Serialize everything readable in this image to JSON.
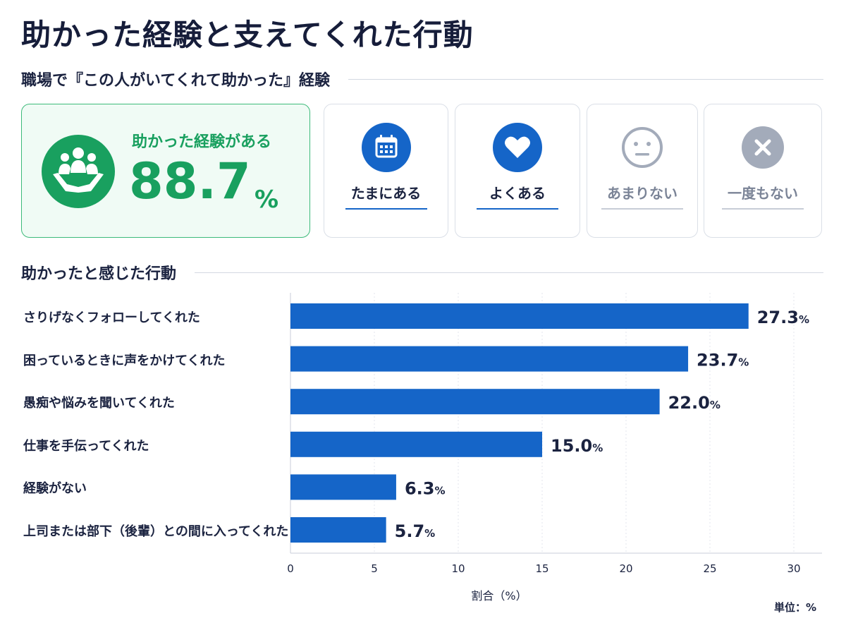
{
  "title": "助かった経験と支えてくれた行動",
  "section1": {
    "title": "職場で『この人がいてくれて助かった』経験"
  },
  "main_card": {
    "label": "助かった経験がある",
    "value": "88.7",
    "unit": "%",
    "icon": "helping-hands-people-icon"
  },
  "frequency_cards": [
    {
      "label": "たまにある",
      "icon": "calendar-icon",
      "state": "active"
    },
    {
      "label": "よくある",
      "icon": "heart-icon",
      "state": "active"
    },
    {
      "label": "あまりない",
      "icon": "neutral-face-icon",
      "state": "muted"
    },
    {
      "label": "一度もない",
      "icon": "cross-circle-icon",
      "state": "muted"
    }
  ],
  "section2": {
    "title": "助かったと感じた行動"
  },
  "colors": {
    "green": "#19a05f",
    "blue": "#1565c8",
    "gray": "#a3abba",
    "text": "#1b2340"
  },
  "chart_data": {
    "type": "bar",
    "orientation": "horizontal",
    "categories": [
      "さりげなくフォローしてくれた",
      "困っているときに声をかけてくれた",
      "愚痴や悩みを聞いてくれた",
      "仕事を手伝ってくれた",
      "経験がない",
      "上司または部下（後輩）との間に入ってくれた"
    ],
    "values": [
      27.3,
      23.7,
      22.0,
      15.0,
      6.3,
      5.7
    ],
    "value_labels": [
      "27.3",
      "23.7",
      "22.0",
      "15.0",
      "6.3",
      "5.7"
    ],
    "value_unit": "%",
    "xlabel": "割合（%）",
    "xlim": [
      0,
      30
    ],
    "xticks": [
      "0",
      "5",
      "10",
      "15",
      "20",
      "25",
      "30"
    ],
    "grid": true,
    "note": "単位：%"
  }
}
